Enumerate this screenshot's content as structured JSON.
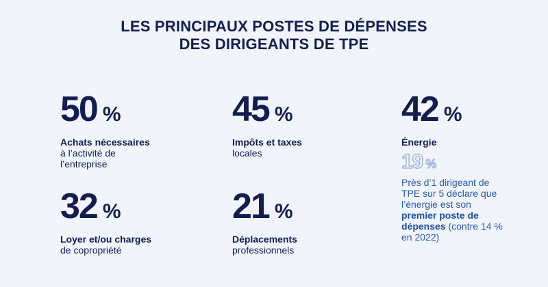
{
  "title": {
    "line1": "LES PRINCIPAUX POSTES DE DÉPENSES",
    "line2": "DES DIRIGEANTS DE TPE"
  },
  "stats": [
    {
      "value": "50",
      "unit": "%",
      "label_bold": "Achats nécessaires",
      "label_line1": "à l’activité de",
      "label_line2": "l’entreprise"
    },
    {
      "value": "45",
      "unit": "%",
      "label_bold": "Impôts et taxes",
      "label_line1": "locales",
      "label_line2": ""
    },
    {
      "value": "42",
      "unit": "%",
      "label_bold": "Énergie",
      "label_line1": "",
      "label_line2": ""
    },
    {
      "value": "32",
      "unit": "%",
      "label_bold": "Loyer et/ou charges",
      "label_line1": "de copropriété",
      "label_line2": ""
    },
    {
      "value": "21",
      "unit": "%",
      "label_bold": "Déplacements",
      "label_line1": "professionnels",
      "label_line2": ""
    }
  ],
  "energy_note": {
    "value": "19",
    "unit": "%",
    "text_before": "Près d’1 dirigeant de TPE sur 5 déclare que l’énergie est son ",
    "text_highlight": "premier poste de dépenses",
    "text_after": " (contre 14 % en 2022)",
    "colors": {
      "outline": "#8fa8d6",
      "text": "#2a5ba8",
      "highlight": "#1c4f9c"
    }
  },
  "colors": {
    "background": "#f1f4fa",
    "primary": "#131d4f"
  }
}
